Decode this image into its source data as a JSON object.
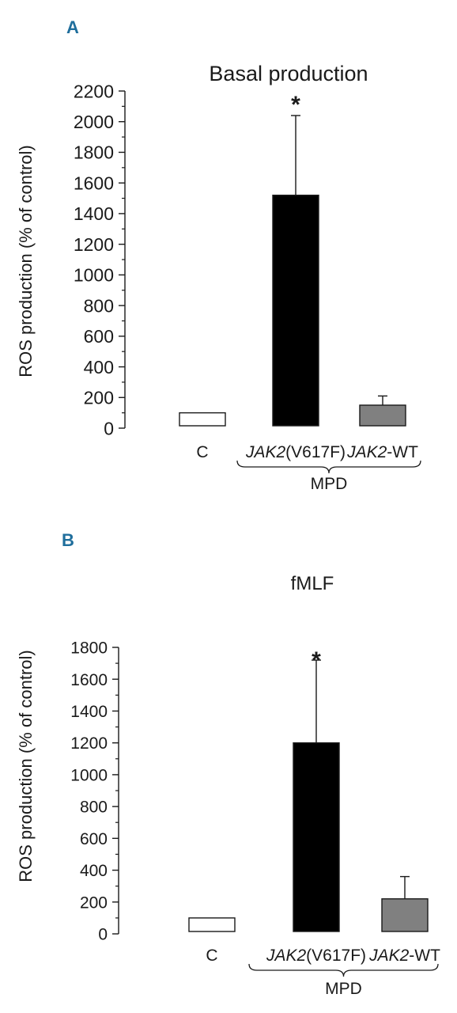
{
  "chart_data": [
    {
      "type": "bar",
      "panel_label": "A",
      "title": "Basal production",
      "ylabel": "ROS production (% of control)",
      "ylim": [
        0,
        2200
      ],
      "yticks": [
        0,
        200,
        400,
        600,
        800,
        1000,
        1200,
        1400,
        1600,
        1800,
        2000,
        2200
      ],
      "categories": [
        {
          "prefix": "",
          "italic": "",
          "suffix": "C"
        },
        {
          "prefix": "",
          "italic": "JAK2",
          "suffix": "(V617F)"
        },
        {
          "prefix": "",
          "italic": "JAK2",
          "suffix": "-WT"
        }
      ],
      "values": [
        100,
        1520,
        150
      ],
      "errors": [
        0,
        520,
        60
      ],
      "bar_colors": [
        "#ffffff",
        "#000000",
        "#808080"
      ],
      "significance": [
        "",
        "*",
        ""
      ],
      "group_label": "MPD"
    },
    {
      "type": "bar",
      "panel_label": "B",
      "title": "fMLF",
      "ylabel": "ROS production (% of control)",
      "ylim": [
        0,
        1800
      ],
      "yticks": [
        0,
        200,
        400,
        600,
        800,
        1000,
        1200,
        1400,
        1600,
        1800
      ],
      "categories": [
        {
          "prefix": "",
          "italic": "",
          "suffix": "C"
        },
        {
          "prefix": "",
          "italic": "JAK2",
          "suffix": "(V617F)"
        },
        {
          "prefix": "",
          "italic": "JAK2",
          "suffix": "-WT"
        }
      ],
      "values": [
        100,
        1200,
        220
      ],
      "errors": [
        0,
        520,
        140
      ],
      "bar_colors": [
        "#ffffff",
        "#000000",
        "#808080"
      ],
      "significance": [
        "",
        "*",
        ""
      ],
      "group_label": "MPD"
    }
  ]
}
